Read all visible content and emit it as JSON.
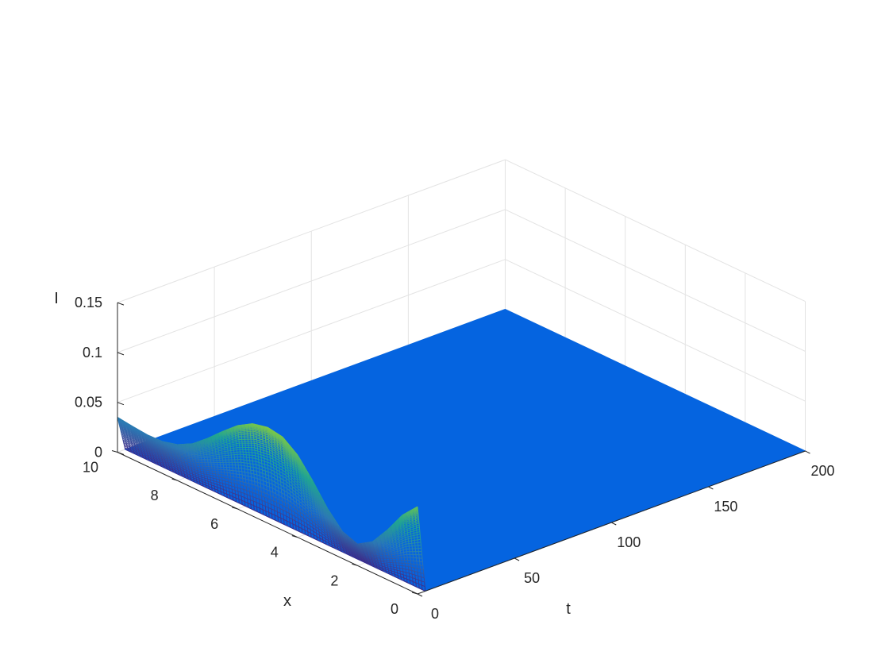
{
  "chart_data": {
    "type": "surface",
    "title": "",
    "xlabel": "t",
    "ylabel": "x",
    "zlabel": "I",
    "t_range": [
      0,
      200
    ],
    "x_range": [
      0,
      10
    ],
    "z_range": [
      0,
      0.15
    ],
    "t_ticks": [
      "0",
      "50",
      "100",
      "150",
      "200"
    ],
    "x_ticks": [
      "0",
      "2",
      "4",
      "6",
      "8",
      "10"
    ],
    "z_ticks": [
      "0",
      "0.05",
      "0.1",
      "0.15"
    ],
    "grid": true,
    "colormap": [
      "#3e2a87",
      "#2d79b4",
      "#21a493",
      "#75c54e",
      "#f9e61f"
    ],
    "flat_surface_color": "#0564e0",
    "axis_color": "#262626",
    "grid_color": "#e3e3e3",
    "profile_at_t0": {
      "x": [
        0,
        0.5,
        1,
        1.5,
        2,
        2.5,
        3,
        3.5,
        4,
        4.5,
        5,
        5.5,
        6,
        6.5,
        7,
        7.5,
        8,
        8.5,
        9,
        9.5,
        10
      ],
      "I": [
        0.0875,
        0.072,
        0.05,
        0.031,
        0.0215,
        0.027,
        0.043,
        0.064,
        0.0825,
        0.0935,
        0.096,
        0.0925,
        0.0835,
        0.0705,
        0.0565,
        0.044,
        0.036,
        0.032,
        0.0315,
        0.033,
        0.035
      ]
    },
    "decay_to_zero_by_t": 4
  }
}
